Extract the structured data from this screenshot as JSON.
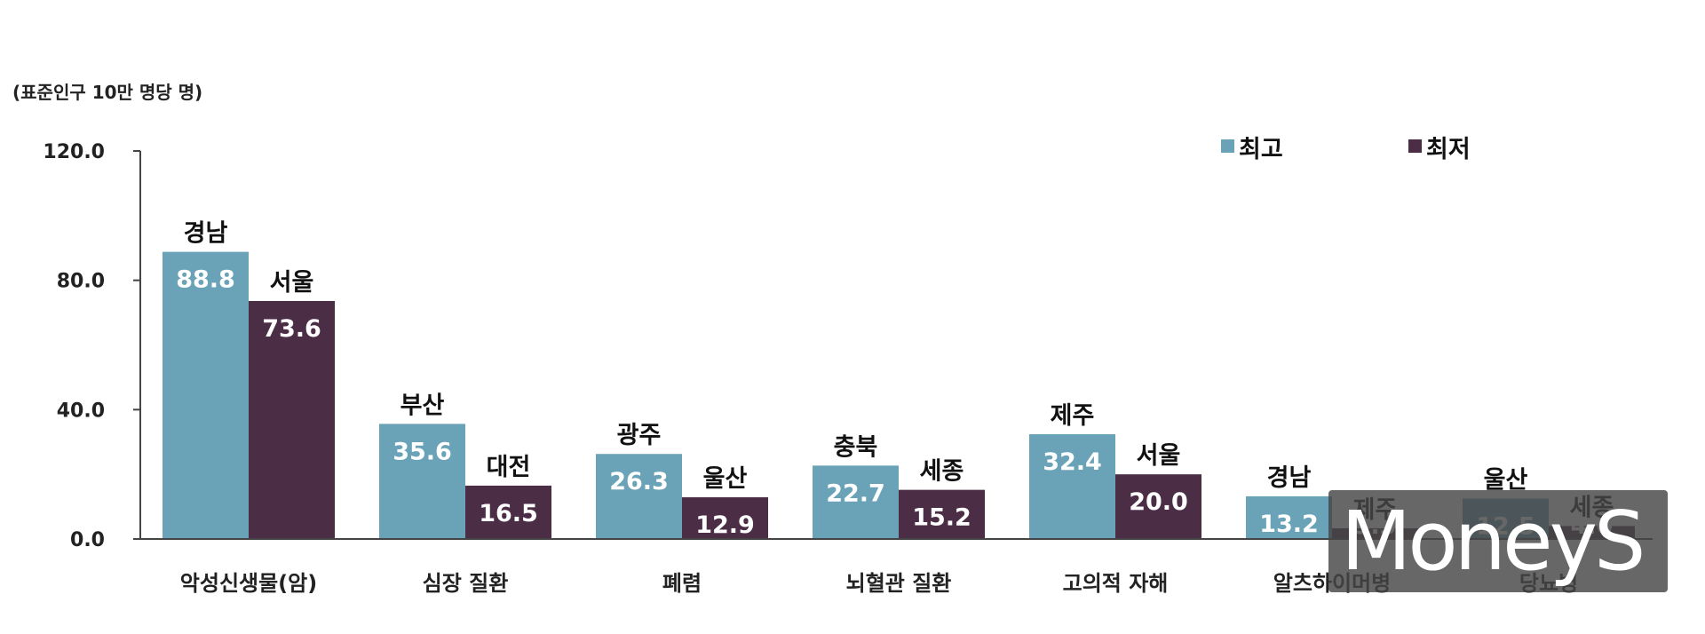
{
  "colors": {
    "high": "#6aa3b7",
    "low": "#4b2d45",
    "axis": "#444444",
    "watermark_bg": "#474747"
  },
  "unit_label": "(표준인구 10만 명당 명)",
  "legend": {
    "high": "최고",
    "low": "최저"
  },
  "watermark": {
    "text": "MoneyS"
  },
  "chart_data": {
    "type": "bar",
    "ylim": [
      0,
      120
    ],
    "y_ticks": [
      "120.0",
      "80.0",
      "40.0",
      "0.0"
    ],
    "y_tick_values": [
      120,
      80,
      40,
      0
    ],
    "categories": [
      "악성신생물(암)",
      "심장 질환",
      "폐렴",
      "뇌혈관 질환",
      "고의적 자해",
      "알츠하이머병",
      "당뇨병"
    ],
    "series": [
      {
        "name": "최고",
        "values": [
          88.8,
          35.6,
          26.3,
          22.7,
          32.4,
          13.2,
          12.5
        ],
        "value_labels": [
          "88.8",
          "35.6",
          "26.3",
          "22.7",
          "32.4",
          "13.2",
          "12.5"
        ],
        "regions": [
          "경남",
          "부산",
          "광주",
          "충북",
          "제주",
          "경남",
          "울산"
        ]
      },
      {
        "name": "최저",
        "values": [
          73.6,
          16.5,
          12.9,
          15.2,
          20.0,
          3.3,
          4.0
        ],
        "value_labels": [
          "73.6",
          "16.5",
          "12.9",
          "15.2",
          "20.0",
          "3.3",
          "4.0"
        ],
        "regions": [
          "서울",
          "대전",
          "울산",
          "세종",
          "서울",
          "제주",
          "세종"
        ]
      }
    ]
  }
}
